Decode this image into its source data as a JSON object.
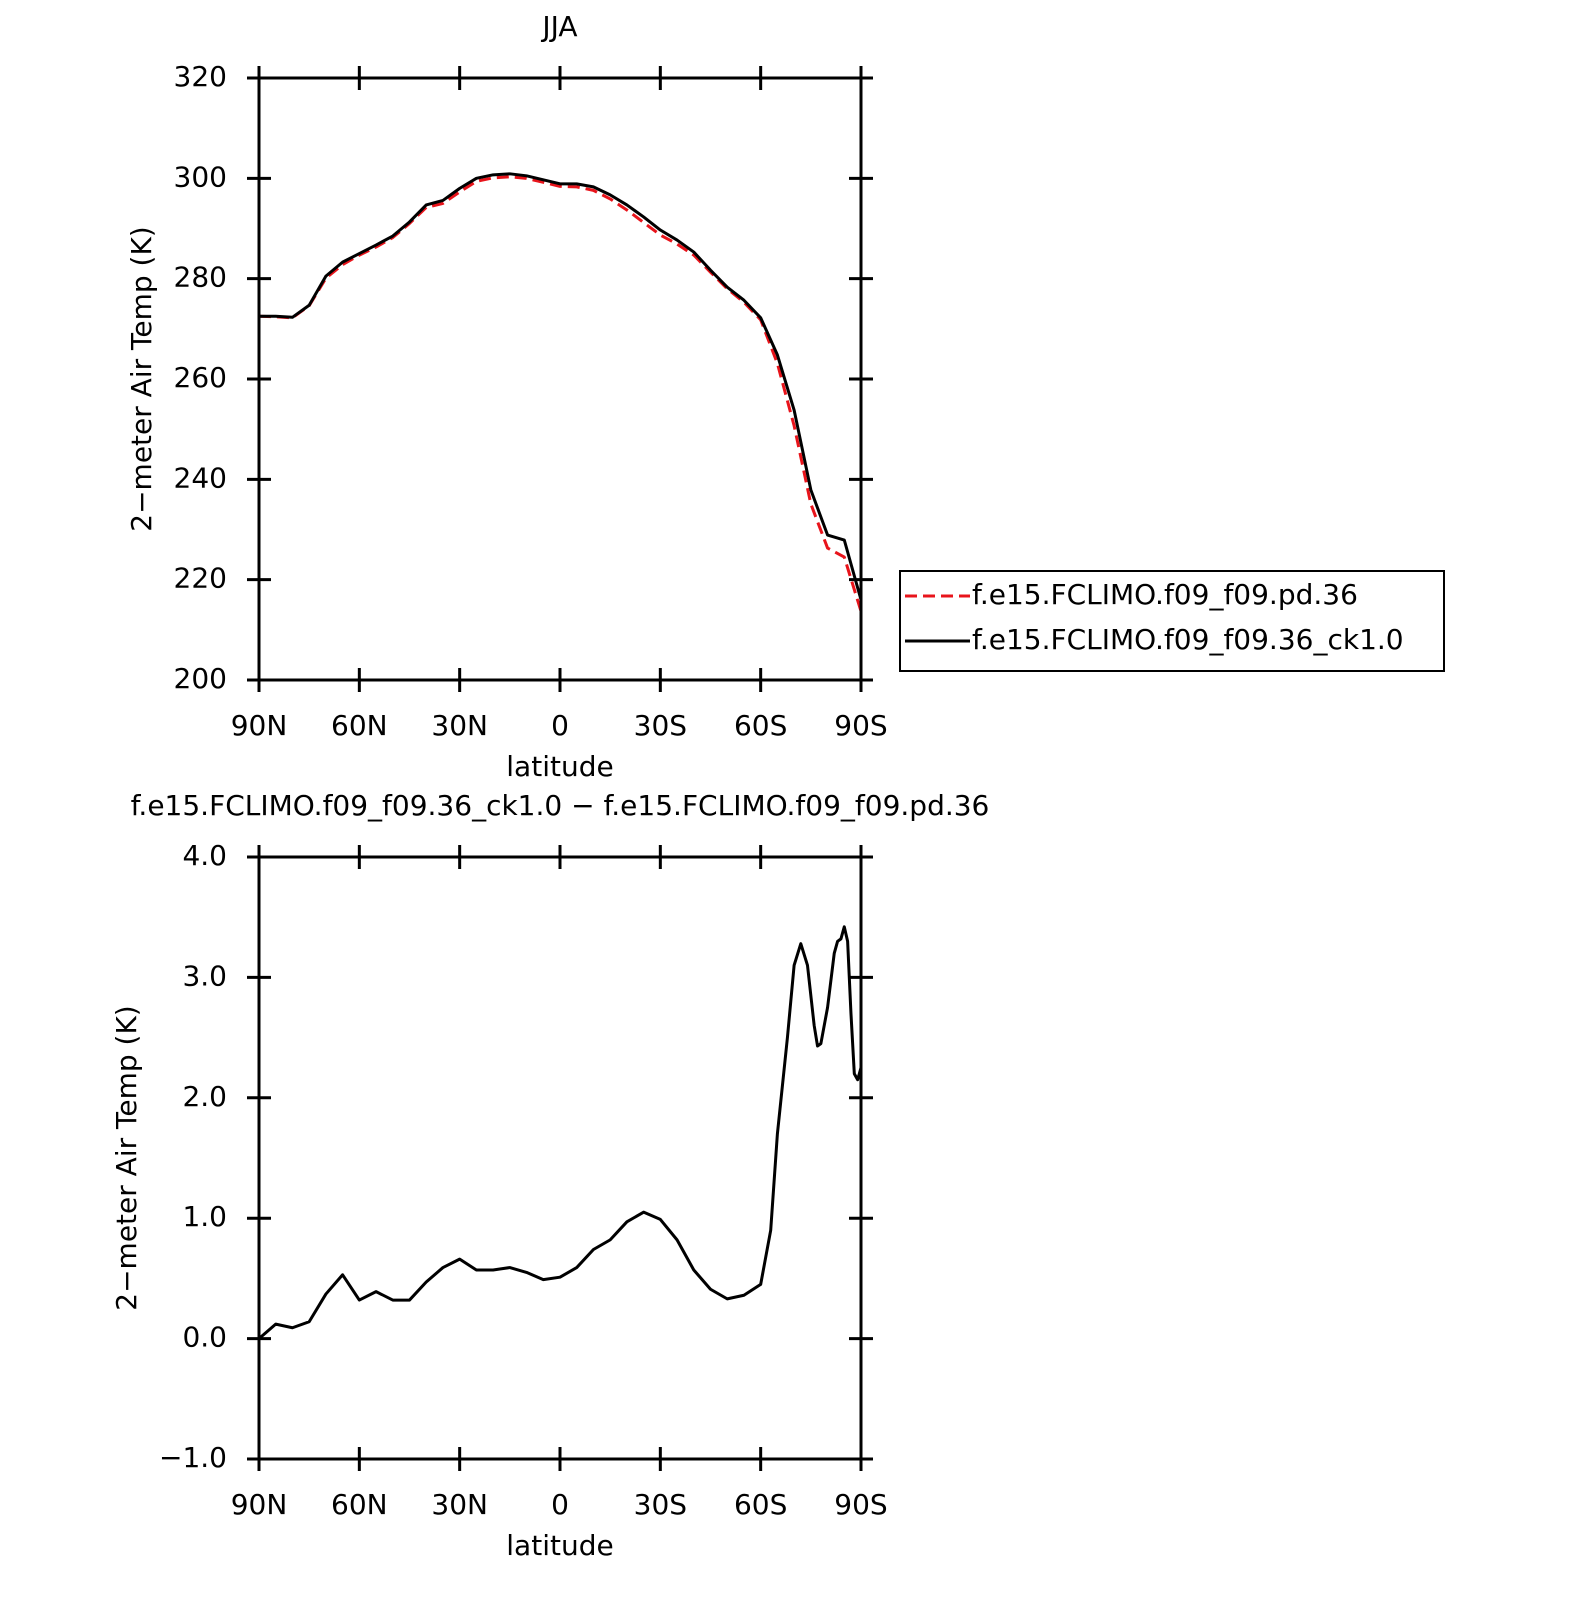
{
  "chart_data": [
    {
      "type": "line",
      "title": "JJA",
      "x_label": "latitude",
      "y_label": "2−meter Air Temp (K)",
      "x": [
        90,
        85,
        80,
        75,
        70,
        65,
        60,
        55,
        50,
        45,
        40,
        35,
        30,
        25,
        20,
        15,
        10,
        5,
        0,
        -5,
        -10,
        -15,
        -20,
        -25,
        -30,
        -35,
        -40,
        -45,
        -50,
        -55,
        -60,
        -65,
        -70,
        -75,
        -80,
        -85,
        -90
      ],
      "xlim": [
        90,
        -90
      ],
      "xticks": [
        {
          "value": 90,
          "label": "90N"
        },
        {
          "value": 60,
          "label": "60N"
        },
        {
          "value": 30,
          "label": "30N"
        },
        0,
        {
          "value": -30,
          "label": "30S"
        },
        {
          "value": -60,
          "label": "60S"
        },
        {
          "value": -90,
          "label": "90S"
        }
      ],
      "ylim": [
        200,
        320
      ],
      "yticks": [
        200,
        220,
        240,
        260,
        280,
        300,
        320
      ],
      "legend": "right",
      "series": [
        {
          "name": "f.e15.FCLIMO.f09_f09.pd.36",
          "color": "#e8141b",
          "style": "dashed",
          "values": [
            272.5,
            272.4,
            272.2,
            274.6,
            280.1,
            282.8,
            284.7,
            286.3,
            288.2,
            291.0,
            294.2,
            295.0,
            297.3,
            299.4,
            300.1,
            300.3,
            300.0,
            299.2,
            298.4,
            298.3,
            297.6,
            295.9,
            293.7,
            291.2,
            288.7,
            286.9,
            284.7,
            281.3,
            278.0,
            275.3,
            271.8,
            263.1,
            250.7,
            235.1,
            226.3,
            224.5,
            213.7
          ]
        },
        {
          "name": "f.e15.FCLIMO.f09_f09.36_ck1.0",
          "color": "#000000",
          "style": "solid",
          "values": [
            272.5,
            272.5,
            272.3,
            274.7,
            280.5,
            283.3,
            285,
            286.7,
            288.5,
            291.3,
            294.7,
            295.6,
            298,
            300,
            300.7,
            300.9,
            300.5,
            299.7,
            298.9,
            298.9,
            298.3,
            296.7,
            294.7,
            292.3,
            289.7,
            287.7,
            285.3,
            281.7,
            278.3,
            275.7,
            272.2,
            264.8,
            253.8,
            237.9,
            228.9,
            227.9,
            216
          ]
        }
      ]
    },
    {
      "type": "line",
      "title": "f.e15.FCLIMO.f09_f09.36_ck1.0 − f.e15.FCLIMO.f09_f09.pd.36",
      "x_label": "latitude",
      "y_label": "2−meter Air Temp (K)",
      "x": [
        90,
        85,
        80,
        75,
        70,
        65,
        60,
        55,
        50,
        45,
        40,
        35,
        30,
        25,
        20,
        15,
        10,
        5,
        0,
        -5,
        -10,
        -15,
        -20,
        -25,
        -30,
        -35,
        -40,
        -45,
        -50,
        -55,
        -60,
        -63,
        -65,
        -68,
        -70,
        -72,
        -74,
        -76,
        -77,
        -78,
        -80,
        -82,
        -83,
        -84,
        -85,
        -86,
        -87,
        -88,
        -89,
        -90
      ],
      "xlim": [
        90,
        -90
      ],
      "xticks": [
        {
          "value": 90,
          "label": "90N"
        },
        {
          "value": 60,
          "label": "60N"
        },
        {
          "value": 30,
          "label": "30N"
        },
        0,
        {
          "value": -30,
          "label": "30S"
        },
        {
          "value": -60,
          "label": "60S"
        },
        {
          "value": -90,
          "label": "90S"
        }
      ],
      "ylim": [
        -1,
        4
      ],
      "yticks": [
        {
          "value": -1,
          "label": "−1.0"
        },
        {
          "value": 0,
          "label": "0.0"
        },
        {
          "value": 1,
          "label": "1.0"
        },
        {
          "value": 2,
          "label": "2.0"
        },
        {
          "value": 3,
          "label": "3.0"
        },
        {
          "value": 4,
          "label": "4.0"
        }
      ],
      "series": [
        {
          "color": "#000000",
          "style": "solid",
          "values": [
            0,
            0.12,
            0.09,
            0.14,
            0.37,
            0.53,
            0.32,
            0.39,
            0.32,
            0.32,
            0.47,
            0.59,
            0.66,
            0.57,
            0.57,
            0.59,
            0.55,
            0.49,
            0.51,
            0.59,
            0.74,
            0.82,
            0.97,
            1.05,
            0.99,
            0.82,
            0.57,
            0.41,
            0.33,
            0.36,
            0.45,
            0.9,
            1.7,
            2.5,
            3.1,
            3.28,
            3.1,
            2.6,
            2.43,
            2.45,
            2.75,
            3.2,
            3.3,
            3.32,
            3.42,
            3.3,
            2.7,
            2.2,
            2.15,
            2.25
          ]
        }
      ]
    }
  ]
}
